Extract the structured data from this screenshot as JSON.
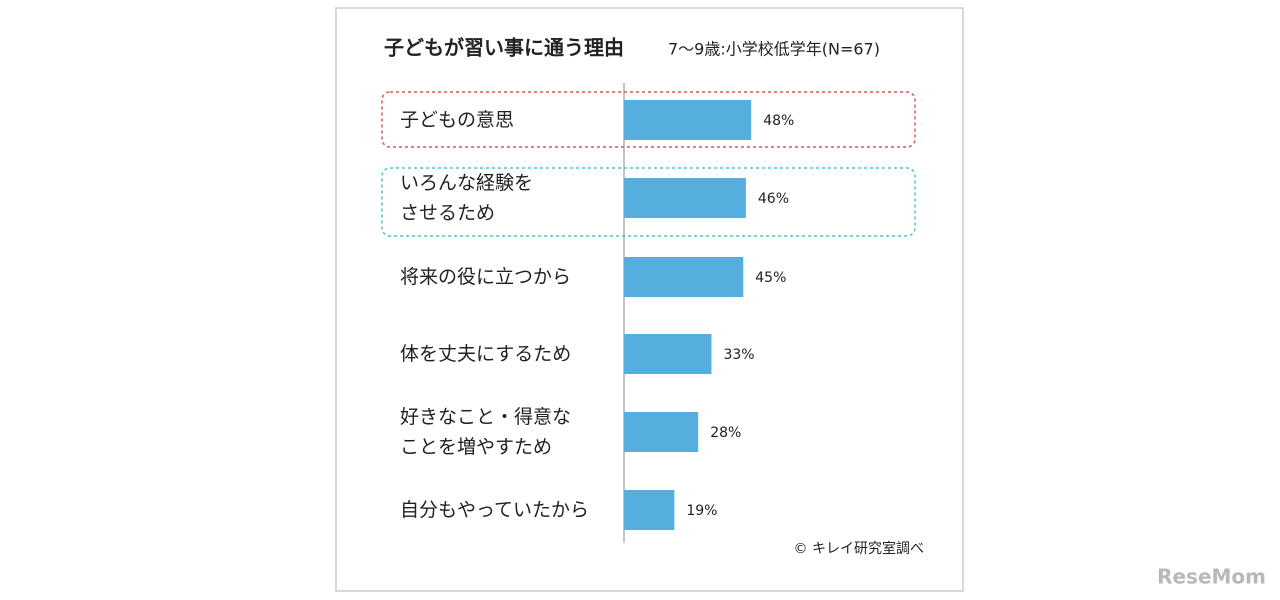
{
  "chart_data": {
    "type": "bar",
    "orientation": "horizontal",
    "title": "子どもが習い事に通う理由",
    "subtitle": "7〜9歳:小学校低学年(N=67)",
    "categories": [
      "子どもの意思",
      "いろんな経験を\nさせるため",
      "将来の役に立つから",
      "体を丈夫にするため",
      "好きなこと・得意な\nことを増やすため",
      "自分もやっていたから"
    ],
    "values": [
      48,
      46,
      45,
      33,
      28,
      19
    ],
    "value_labels": [
      "48%",
      "46%",
      "45%",
      "33%",
      "28%",
      "19%"
    ],
    "color": "#55aede",
    "source": "© キレイ研究室調べ",
    "watermark": "ReseMom"
  }
}
